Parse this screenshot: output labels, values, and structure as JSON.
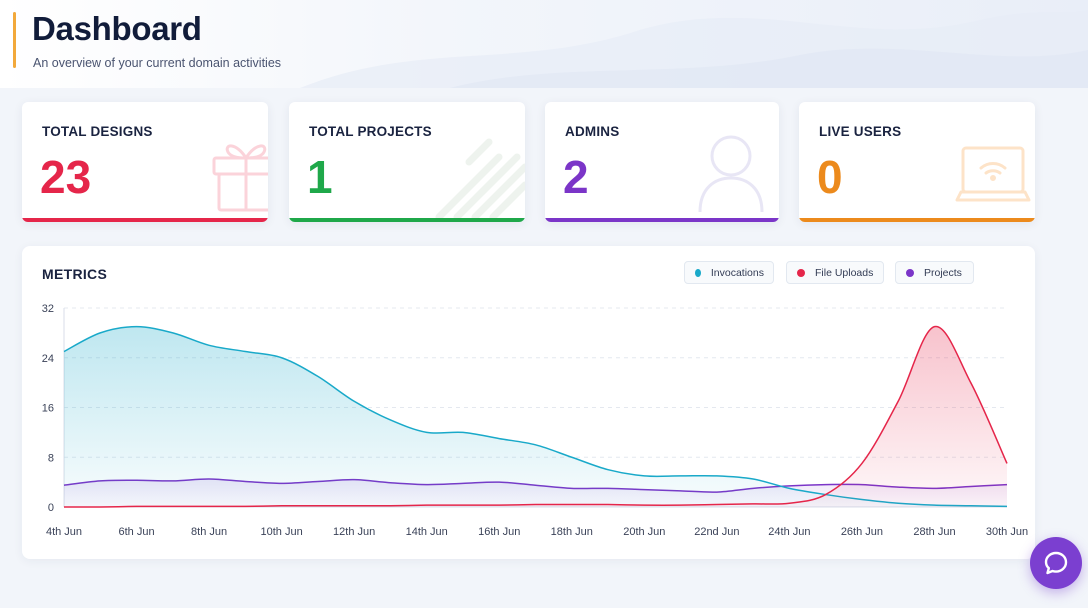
{
  "header": {
    "title": "Dashboard",
    "subtitle": "An overview of your current domain activities"
  },
  "cards": [
    {
      "label": "TOTAL DESIGNS",
      "value": "23",
      "color": "#e5264a",
      "icon": "gift-icon"
    },
    {
      "label": "TOTAL PROJECTS",
      "value": "1",
      "color": "#1fa84a",
      "icon": "stripes-icon"
    },
    {
      "label": "ADMINS",
      "value": "2",
      "color": "#7b35c8",
      "icon": "user-icon"
    },
    {
      "label": "LIVE USERS",
      "value": "0",
      "color": "#ec8a1c",
      "icon": "laptop-wifi-icon"
    }
  ],
  "metrics": {
    "title": "METRICS",
    "legend": [
      {
        "name": "Invocations",
        "color": "#19a9c9"
      },
      {
        "name": "File Uploads",
        "color": "#e5264a"
      },
      {
        "name": "Projects",
        "color": "#7b35c8"
      }
    ]
  },
  "chart_data": {
    "type": "area",
    "title": "METRICS",
    "xlabel": "",
    "ylabel": "",
    "ylim": [
      0,
      32
    ],
    "yticks": [
      0,
      8,
      16,
      24,
      32
    ],
    "grid": true,
    "legend_position": "top-right",
    "x": [
      "4th Jun",
      "5th Jun",
      "6th Jun",
      "7th Jun",
      "8th Jun",
      "9th Jun",
      "10th Jun",
      "11th Jun",
      "12th Jun",
      "13th Jun",
      "14th Jun",
      "15th Jun",
      "16th Jun",
      "17th Jun",
      "18th Jun",
      "19th Jun",
      "20th Jun",
      "21st Jun",
      "22nd Jun",
      "23rd Jun",
      "24th Jun",
      "25th Jun",
      "26th Jun",
      "27th Jun",
      "28th Jun",
      "29th Jun",
      "30th Jun"
    ],
    "xtick_labels": [
      "4th Jun",
      "6th Jun",
      "8th Jun",
      "10th Jun",
      "12th Jun",
      "14th Jun",
      "16th Jun",
      "18th Jun",
      "20th Jun",
      "22nd Jun",
      "24th Jun",
      "26th Jun",
      "28th Jun",
      "30th Jun"
    ],
    "series": [
      {
        "name": "Invocations",
        "color": "#19a9c9",
        "values": [
          25,
          28,
          29,
          28,
          26,
          25,
          24,
          21,
          17,
          14,
          12,
          12,
          11,
          10,
          8,
          6,
          5,
          5,
          5,
          4.5,
          3,
          2,
          1.2,
          0.6,
          0.3,
          0.2,
          0.1
        ]
      },
      {
        "name": "File Uploads",
        "color": "#e5264a",
        "values": [
          0,
          0,
          0.1,
          0.1,
          0.1,
          0.1,
          0.2,
          0.2,
          0.2,
          0.2,
          0.3,
          0.3,
          0.3,
          0.4,
          0.4,
          0.4,
          0.3,
          0.3,
          0.4,
          0.5,
          0.6,
          2,
          7,
          17,
          29,
          20,
          7
        ]
      },
      {
        "name": "Projects",
        "color": "#7b35c8",
        "values": [
          3.5,
          4.2,
          4.3,
          4.2,
          4.5,
          4.1,
          3.8,
          4.1,
          4.4,
          3.9,
          3.6,
          3.8,
          4.0,
          3.5,
          3.0,
          3.0,
          2.8,
          2.6,
          2.4,
          3.0,
          3.4,
          3.6,
          3.6,
          3.2,
          3.0,
          3.3,
          3.6
        ]
      }
    ]
  }
}
